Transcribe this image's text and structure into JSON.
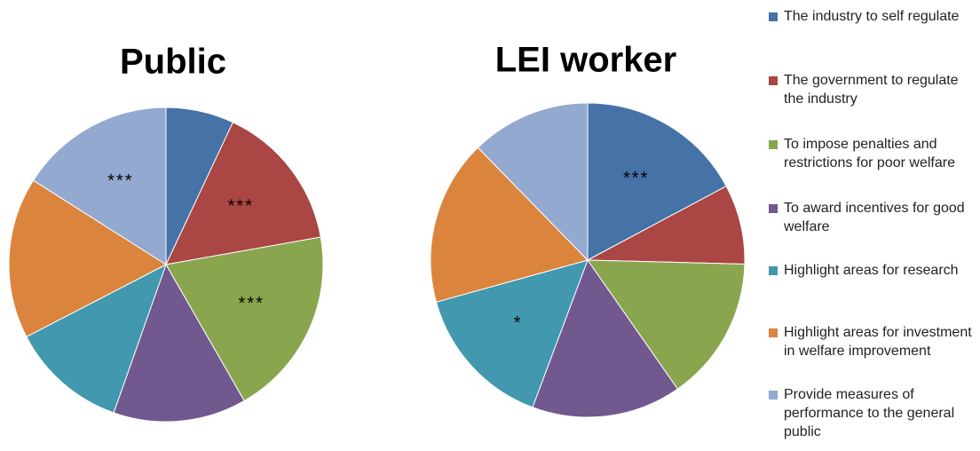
{
  "chart_data": [
    {
      "type": "pie",
      "title": "Public",
      "categories": [
        "The industry to self regulate",
        "The government to regulate the industry",
        "To impose penalties and restrictions for poor welfare",
        "To award incentives for good welfare",
        "Highlight areas for research",
        "Highlight areas for investment in welfare improvement",
        "Provide measures of performance to the general public"
      ],
      "colors": [
        "#4572a7",
        "#aa4643",
        "#89a54e",
        "#71588f",
        "#4198af",
        "#db843d",
        "#93a9cf"
      ],
      "values": [
        7,
        15.2,
        19.5,
        13.7,
        12,
        16.6,
        16
      ],
      "annotations": [
        null,
        "***",
        "***",
        null,
        null,
        null,
        "***"
      ]
    },
    {
      "type": "pie",
      "title": "LEI worker",
      "values": [
        17.2,
        8.2,
        14.9,
        15.4,
        15,
        17,
        12.3
      ],
      "annotations": [
        "***",
        null,
        null,
        null,
        "*",
        null,
        null
      ]
    }
  ]
}
